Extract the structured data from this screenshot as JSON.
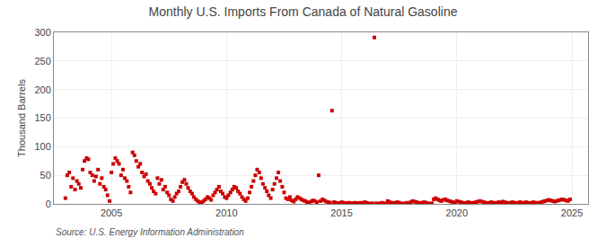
{
  "chart_data": {
    "type": "scatter",
    "title": "Monthly U.S. Imports From Canada of Natural Gasoline",
    "ylabel": "Thousand Barrels",
    "annotations": [
      "Source: U.S. Energy Information Administration"
    ],
    "color": "#cc0000",
    "marker": "square",
    "grid": true,
    "xlim": [
      2002.5,
      2025.7
    ],
    "xticks": [
      2005,
      2010,
      2015,
      2020,
      2025
    ],
    "ylim": [
      0,
      300
    ],
    "yticks": [
      0,
      50,
      100,
      150,
      200,
      250,
      300
    ],
    "x": [
      2003.0,
      2003.08,
      2003.17,
      2003.25,
      2003.33,
      2003.42,
      2003.5,
      2003.58,
      2003.67,
      2003.75,
      2003.83,
      2003.92,
      2004.0,
      2004.08,
      2004.17,
      2004.25,
      2004.33,
      2004.42,
      2004.5,
      2004.58,
      2004.67,
      2004.75,
      2004.83,
      2004.92,
      2005.0,
      2005.08,
      2005.17,
      2005.25,
      2005.33,
      2005.42,
      2005.5,
      2005.58,
      2005.67,
      2005.75,
      2005.83,
      2005.92,
      2006.0,
      2006.08,
      2006.17,
      2006.25,
      2006.33,
      2006.42,
      2006.5,
      2006.58,
      2006.67,
      2006.75,
      2006.83,
      2006.92,
      2007.0,
      2007.08,
      2007.17,
      2007.25,
      2007.33,
      2007.42,
      2007.5,
      2007.58,
      2007.67,
      2007.75,
      2007.83,
      2007.92,
      2008.0,
      2008.08,
      2008.17,
      2008.25,
      2008.33,
      2008.42,
      2008.5,
      2008.58,
      2008.67,
      2008.75,
      2008.83,
      2008.92,
      2009.0,
      2009.08,
      2009.17,
      2009.25,
      2009.33,
      2009.42,
      2009.5,
      2009.58,
      2009.67,
      2009.75,
      2009.83,
      2009.92,
      2010.0,
      2010.08,
      2010.17,
      2010.25,
      2010.33,
      2010.42,
      2010.5,
      2010.58,
      2010.67,
      2010.75,
      2010.83,
      2010.92,
      2011.0,
      2011.08,
      2011.17,
      2011.25,
      2011.33,
      2011.42,
      2011.5,
      2011.58,
      2011.67,
      2011.75,
      2011.83,
      2011.92,
      2012.0,
      2012.08,
      2012.17,
      2012.25,
      2012.33,
      2012.42,
      2012.5,
      2012.58,
      2012.67,
      2012.75,
      2012.83,
      2012.92,
      2013.0,
      2013.08,
      2013.17,
      2013.25,
      2013.33,
      2013.42,
      2013.5,
      2013.58,
      2013.67,
      2013.75,
      2013.83,
      2013.92,
      2014.0,
      2014.08,
      2014.17,
      2014.25,
      2014.33,
      2014.42,
      2014.5,
      2014.58,
      2014.67,
      2014.75,
      2014.83,
      2014.92,
      2015.0,
      2015.08,
      2015.17,
      2015.25,
      2015.33,
      2015.42,
      2015.5,
      2015.58,
      2015.67,
      2015.75,
      2015.83,
      2015.92,
      2016.0,
      2016.08,
      2016.17,
      2016.25,
      2016.33,
      2016.42,
      2016.5,
      2016.58,
      2016.67,
      2016.75,
      2016.83,
      2016.92,
      2017.0,
      2017.08,
      2017.17,
      2017.25,
      2017.33,
      2017.42,
      2017.5,
      2017.58,
      2017.67,
      2017.75,
      2017.83,
      2017.92,
      2018.0,
      2018.08,
      2018.17,
      2018.25,
      2018.33,
      2018.42,
      2018.5,
      2018.58,
      2018.67,
      2018.75,
      2018.83,
      2018.92,
      2019.0,
      2019.08,
      2019.17,
      2019.25,
      2019.33,
      2019.42,
      2019.5,
      2019.58,
      2019.67,
      2019.75,
      2019.83,
      2019.92,
      2020.0,
      2020.08,
      2020.17,
      2020.25,
      2020.33,
      2020.42,
      2020.5,
      2020.58,
      2020.67,
      2020.75,
      2020.83,
      2020.92,
      2021.0,
      2021.08,
      2021.17,
      2021.25,
      2021.33,
      2021.42,
      2021.5,
      2021.58,
      2021.67,
      2021.75,
      2021.83,
      2021.92,
      2022.0,
      2022.08,
      2022.17,
      2022.25,
      2022.33,
      2022.42,
      2022.5,
      2022.58,
      2022.67,
      2022.75,
      2022.83,
      2022.92,
      2023.0,
      2023.08,
      2023.17,
      2023.25,
      2023.33,
      2023.42,
      2023.5,
      2023.58,
      2023.67,
      2023.75,
      2023.83,
      2023.92,
      2024.0,
      2024.08,
      2024.17,
      2024.25,
      2024.33,
      2024.42,
      2024.5,
      2024.58,
      2024.67,
      2024.75,
      2024.83,
      2024.92
    ],
    "values": [
      10,
      50,
      55,
      30,
      45,
      25,
      40,
      35,
      28,
      60,
      75,
      80,
      78,
      55,
      50,
      40,
      48,
      60,
      35,
      45,
      30,
      25,
      15,
      5,
      55,
      70,
      80,
      75,
      70,
      50,
      60,
      45,
      40,
      30,
      20,
      90,
      85,
      75,
      65,
      70,
      55,
      48,
      52,
      40,
      35,
      28,
      22,
      18,
      45,
      35,
      42,
      25,
      30,
      20,
      15,
      8,
      5,
      12,
      18,
      22,
      30,
      38,
      42,
      35,
      28,
      22,
      18,
      12,
      8,
      5,
      3,
      2,
      5,
      8,
      12,
      10,
      7,
      15,
      20,
      25,
      30,
      22,
      18,
      12,
      10,
      15,
      20,
      25,
      30,
      28,
      22,
      18,
      12,
      8,
      5,
      10,
      20,
      30,
      40,
      50,
      60,
      55,
      45,
      35,
      28,
      22,
      15,
      10,
      25,
      35,
      45,
      55,
      40,
      30,
      20,
      10,
      8,
      12,
      6,
      4,
      8,
      12,
      10,
      8,
      6,
      5,
      3,
      2,
      4,
      6,
      5,
      3,
      50,
      5,
      8,
      6,
      4,
      3,
      2,
      163,
      3,
      2,
      1,
      1,
      3,
      2,
      1,
      1,
      2,
      1,
      1,
      2,
      1,
      1,
      2,
      1,
      3,
      2,
      1,
      0,
      1,
      291,
      1,
      0,
      1,
      2,
      1,
      0,
      5,
      3,
      2,
      1,
      2,
      3,
      2,
      1,
      0,
      1,
      2,
      1,
      3,
      5,
      4,
      3,
      2,
      1,
      2,
      3,
      2,
      1,
      0,
      1,
      8,
      10,
      8,
      6,
      5,
      7,
      8,
      6,
      5,
      4,
      3,
      2,
      5,
      4,
      3,
      2,
      1,
      2,
      3,
      2,
      1,
      2,
      3,
      4,
      5,
      4,
      3,
      2,
      1,
      2,
      3,
      2,
      1,
      2,
      3,
      2,
      4,
      3,
      2,
      1,
      2,
      3,
      2,
      1,
      2,
      3,
      2,
      1,
      3,
      2,
      1,
      2,
      3,
      2,
      1,
      2,
      3,
      4,
      5,
      6,
      7,
      6,
      5,
      4,
      5,
      6,
      7,
      8,
      7,
      6,
      5,
      8
    ]
  }
}
